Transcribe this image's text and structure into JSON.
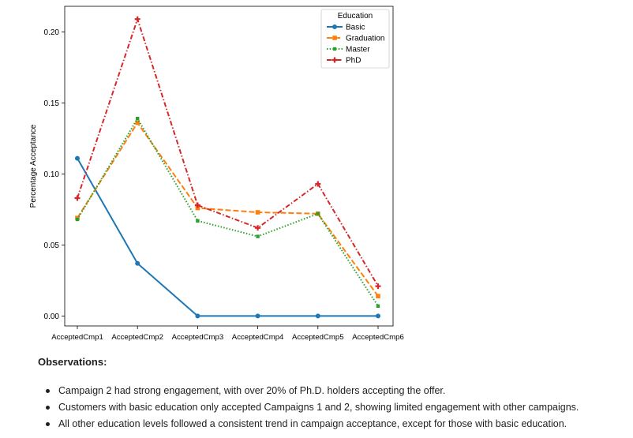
{
  "chart_data": {
    "type": "line",
    "title": "",
    "xlabel": "",
    "ylabel": "Percentage Acceptance",
    "categories": [
      "AcceptedCmp1",
      "AcceptedCmp2",
      "AcceptedCmp3",
      "AcceptedCmp4",
      "AcceptedCmp5",
      "AcceptedCmp6"
    ],
    "ylim": [
      -0.007,
      0.218
    ],
    "yticks": [
      "0.00",
      "0.05",
      "0.10",
      "0.15",
      "0.20"
    ],
    "ytick_values": [
      0.0,
      0.05,
      0.1,
      0.15,
      0.2
    ],
    "grid": false,
    "legend": {
      "title": "Education",
      "placement": "top-right"
    },
    "series": [
      {
        "name": "Basic",
        "color": "#1f77b4",
        "style": "solid",
        "marker": "circle",
        "values": [
          0.111,
          0.037,
          0.0,
          0.0,
          0.0,
          0.0
        ]
      },
      {
        "name": "Graduation",
        "color": "#ff7f0e",
        "style": "dashed",
        "marker": "square",
        "values": [
          0.069,
          0.136,
          0.076,
          0.073,
          0.072,
          0.014
        ]
      },
      {
        "name": "Master",
        "color": "#2ca02c",
        "style": "dotted",
        "marker": "square-small",
        "values": [
          0.068,
          0.139,
          0.067,
          0.056,
          0.072,
          0.007
        ]
      },
      {
        "name": "PhD",
        "color": "#d62728",
        "style": "dashdot",
        "marker": "plus",
        "values": [
          0.083,
          0.209,
          0.078,
          0.062,
          0.093,
          0.021
        ]
      }
    ]
  },
  "observations": {
    "title": "Observations:",
    "items": [
      "Campaign 2 had strong engagement, with over 20% of Ph.D. holders accepting the offer.",
      "Customers with basic education only accepted Campaigns 1 and 2, showing limited engagement with other campaigns.",
      "All other education levels followed a consistent trend in campaign acceptance, except for those with basic education."
    ]
  }
}
